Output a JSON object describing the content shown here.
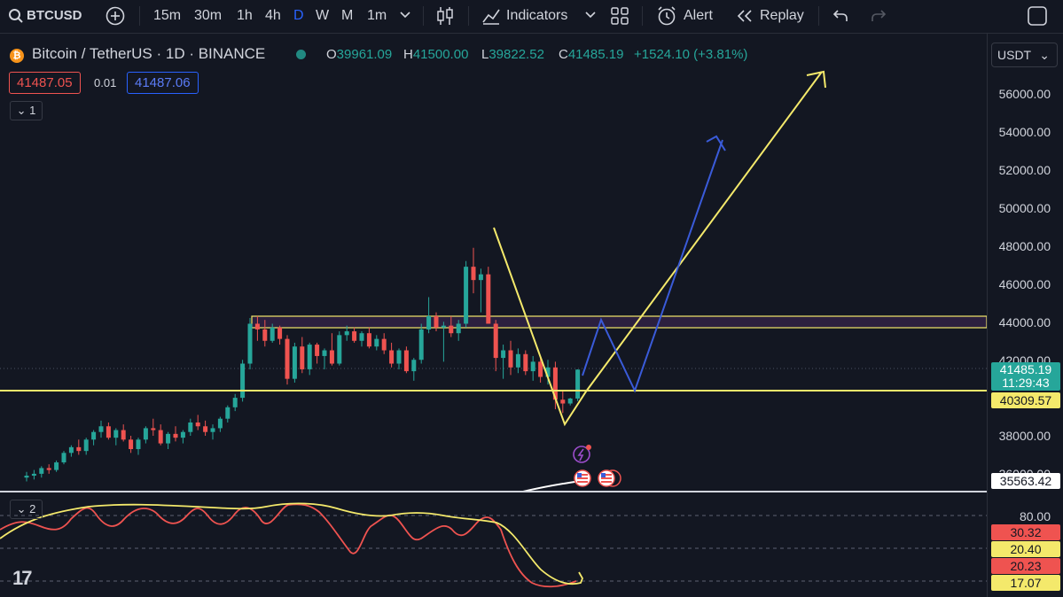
{
  "toolbar": {
    "symbol": "BTCUSD",
    "intervals": [
      "15m",
      "30m",
      "1h",
      "4h",
      "D",
      "W",
      "M",
      "1m"
    ],
    "active_interval": "D",
    "indicators_label": "Indicators",
    "alert_label": "Alert",
    "replay_label": "Replay",
    "icons": [
      "search-icon",
      "add-symbol-icon",
      "chevron-down-icon",
      "candles-icon",
      "indicators-icon",
      "layout-icon",
      "alarm-icon",
      "replay-icon",
      "undo-icon",
      "redo-icon",
      "fullscreen-icon"
    ]
  },
  "legend": {
    "title": "Bitcoin / TetherUS · 1D · BINANCE",
    "open_key": "O",
    "open": "39961.09",
    "high_key": "H",
    "high": "41500.00",
    "low_key": "L",
    "low": "39822.52",
    "close_key": "C",
    "close": "41485.19",
    "change": "+1524.10 (+3.81%)",
    "bid": "41487.05",
    "spread": "0.01",
    "ask": "41487.06",
    "pane1_count": "1",
    "pane2_count": "2"
  },
  "axis": {
    "currency": "USDT",
    "labels": [
      "56000.00",
      "54000.00",
      "52000.00",
      "50000.00",
      "48000.00",
      "46000.00",
      "44000.00",
      "42000.00",
      "38000.00",
      "36000.00"
    ],
    "last_price": "41485.19",
    "countdown": "11:29:43",
    "support_level": "40309.57",
    "white_line_tag": "35563.42",
    "osc_labels": [
      "80.00"
    ],
    "osc_tags": [
      "30.32",
      "20.40",
      "20.23",
      "17.07"
    ]
  },
  "colors": {
    "background": "#131722",
    "up": "#26a69a",
    "down": "#ef5350",
    "yellow": "#f4e96b",
    "blue": "#3a5bd9",
    "zone": "#6b3a8a"
  },
  "chart_data": {
    "type": "candlestick",
    "symbol": "Bitcoin / TetherUS",
    "interval": "1D",
    "exchange": "BINANCE",
    "ylim": [
      35500,
      57500
    ],
    "last_candle": {
      "open": 39961.09,
      "high": 41500.0,
      "low": 39822.52,
      "close": 41485.19
    },
    "support_line": 40309.57,
    "resistance_zone": [
      43650,
      44200
    ],
    "candles": [
      [
        35800,
        36100,
        35600,
        35900
      ],
      [
        35900,
        36200,
        35700,
        36000
      ],
      [
        36000,
        36400,
        35800,
        36300
      ],
      [
        36300,
        36500,
        36000,
        36200
      ],
      [
        36200,
        36700,
        36100,
        36600
      ],
      [
        36600,
        37200,
        36500,
        37100
      ],
      [
        37100,
        37500,
        36900,
        37400
      ],
      [
        37400,
        37800,
        37000,
        37200
      ],
      [
        37200,
        37900,
        37000,
        37800
      ],
      [
        37800,
        38300,
        37500,
        38200
      ],
      [
        38200,
        38800,
        37900,
        38500
      ],
      [
        38500,
        38700,
        37800,
        37900
      ],
      [
        37900,
        38400,
        37500,
        38300
      ],
      [
        38300,
        38600,
        37700,
        37800
      ],
      [
        37800,
        38000,
        37100,
        37300
      ],
      [
        37300,
        37900,
        37000,
        37800
      ],
      [
        37800,
        38500,
        37600,
        38400
      ],
      [
        38400,
        38900,
        38000,
        38300
      ],
      [
        38300,
        38600,
        37500,
        37600
      ],
      [
        37600,
        38200,
        37300,
        38100
      ],
      [
        38100,
        38500,
        37700,
        37900
      ],
      [
        37900,
        38300,
        37600,
        38200
      ],
      [
        38200,
        38900,
        38000,
        38700
      ],
      [
        38700,
        39100,
        38300,
        38500
      ],
      [
        38500,
        38800,
        38000,
        38200
      ],
      [
        38200,
        38600,
        37800,
        38400
      ],
      [
        38400,
        39000,
        38200,
        38900
      ],
      [
        38900,
        39600,
        38700,
        39500
      ],
      [
        39500,
        40200,
        39300,
        40000
      ],
      [
        40000,
        42000,
        39800,
        41800
      ],
      [
        41800,
        44200,
        41500,
        43900
      ],
      [
        43900,
        44300,
        43000,
        43600
      ],
      [
        43600,
        44100,
        42700,
        43000
      ],
      [
        43000,
        43900,
        42900,
        43700
      ],
      [
        43700,
        43800,
        42800,
        43100
      ],
      [
        43100,
        43300,
        40700,
        41000
      ],
      [
        41000,
        42900,
        40800,
        42700
      ],
      [
        42700,
        43200,
        41300,
        41500
      ],
      [
        41500,
        42900,
        41200,
        42800
      ],
      [
        42800,
        42900,
        41800,
        42200
      ],
      [
        42200,
        42600,
        41500,
        42500
      ],
      [
        42500,
        43400,
        41700,
        41800
      ],
      [
        41800,
        43500,
        41700,
        43300
      ],
      [
        43300,
        43800,
        43000,
        43500
      ],
      [
        43500,
        43700,
        42900,
        43000
      ],
      [
        43000,
        43500,
        42700,
        43400
      ],
      [
        43400,
        43700,
        42600,
        42700
      ],
      [
        42700,
        43300,
        42500,
        43100
      ],
      [
        43100,
        43400,
        42300,
        42500
      ],
      [
        42500,
        42900,
        41600,
        41800
      ],
      [
        41800,
        42600,
        41500,
        42500
      ],
      [
        42500,
        42700,
        41300,
        41400
      ],
      [
        41400,
        42100,
        40900,
        42000
      ],
      [
        42000,
        43900,
        41800,
        43600
      ],
      [
        43600,
        45300,
        43400,
        44300
      ],
      [
        44300,
        44500,
        43500,
        43700
      ],
      [
        43700,
        44000,
        41900,
        43800
      ],
      [
        43800,
        44300,
        43200,
        43400
      ],
      [
        43400,
        44100,
        43000,
        43900
      ],
      [
        43900,
        47200,
        43700,
        46900
      ],
      [
        46900,
        47900,
        45500,
        46200
      ],
      [
        46200,
        46800,
        44500,
        46500
      ],
      [
        46500,
        46900,
        43900,
        43900
      ],
      [
        43900,
        44100,
        41400,
        42100
      ],
      [
        42100,
        42800,
        41000,
        42500
      ],
      [
        42500,
        43000,
        41200,
        41600
      ],
      [
        41600,
        42600,
        41300,
        42300
      ],
      [
        42300,
        42500,
        41200,
        41400
      ],
      [
        41400,
        42200,
        40900,
        41900
      ],
      [
        41900,
        42100,
        40800,
        41100
      ],
      [
        41100,
        42000,
        40700,
        41600
      ],
      [
        41600,
        41900,
        39400,
        39900
      ],
      [
        39900,
        40400,
        39200,
        39700
      ],
      [
        39700,
        40000,
        39600,
        39962
      ],
      [
        39961.09,
        41500.0,
        39822.52,
        41485.19
      ]
    ],
    "drawings": {
      "yellow_path": [
        [
          46,
          48700
        ],
        [
          60,
          42100
        ],
        [
          64,
          39400
        ],
        [
          70,
          41200
        ],
        [
          88,
          57500
        ]
      ],
      "blue_path": [
        [
          68,
          41400
        ],
        [
          71,
          44100
        ],
        [
          74,
          40300
        ],
        [
          80,
          53000
        ]
      ]
    },
    "oscillator": {
      "name": "2",
      "levels": [
        80,
        50,
        20
      ],
      "values": [
        30.32,
        20.4,
        20.23,
        17.07
      ]
    }
  }
}
